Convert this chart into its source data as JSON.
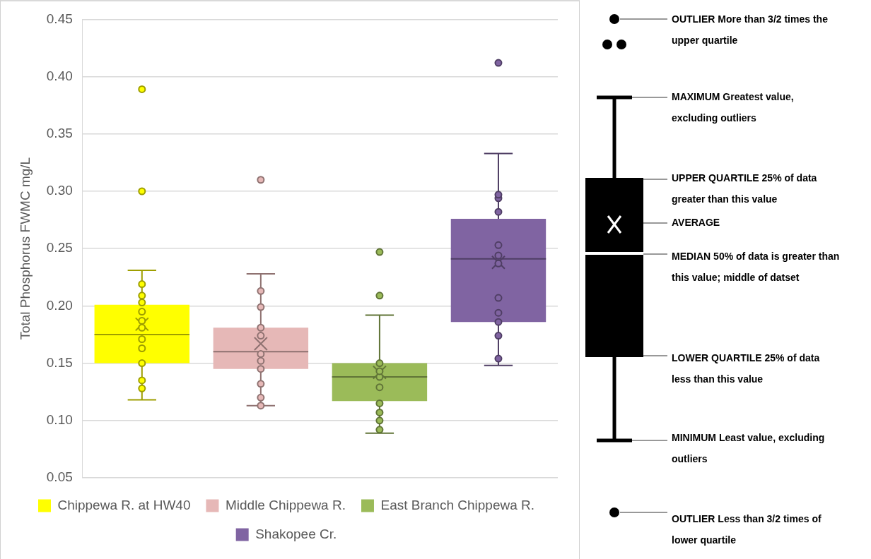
{
  "chart_data": {
    "type": "box",
    "ylabel": "Total Phosphorus FWMC mg/L",
    "categories": [
      null,
      null,
      null,
      null
    ],
    "ylim": [
      0.05,
      0.45
    ],
    "yticks": [
      {
        "value": 0.05,
        "label": "0.05"
      },
      {
        "value": 0.1,
        "label": "0.10"
      },
      {
        "value": 0.15,
        "label": "0.15"
      },
      {
        "value": 0.2,
        "label": "0.20"
      },
      {
        "value": 0.25,
        "label": "0.25"
      },
      {
        "value": 0.3,
        "label": "0.30"
      },
      {
        "value": 0.35,
        "label": "0.35"
      },
      {
        "value": 0.4,
        "label": "0.40"
      },
      {
        "value": 0.45,
        "label": "0.45"
      }
    ],
    "grid": "y",
    "legend": "bottom",
    "tick_labels": "y",
    "marker": "circle",
    "series": [
      {
        "name": "Chippewa R. at HW40",
        "color": "#ffff00",
        "boxes": [
          {
            "low": 0.118,
            "q1": 0.15,
            "median": 0.175,
            "q3": 0.201,
            "high": 0.231,
            "mean": 0.184,
            "outliers": [
              0.389,
              0.3
            ]
          },
          null,
          null,
          null
        ]
      },
      {
        "name": "Middle Chippewa R.",
        "color": "#e6b8b7",
        "boxes": [
          null,
          {
            "low": 0.113,
            "q1": 0.145,
            "median": 0.16,
            "q3": 0.181,
            "high": 0.228,
            "mean": 0.167,
            "outliers": [
              0.31
            ]
          },
          null,
          null
        ]
      },
      {
        "name": "East Branch Chippewa R.",
        "color": "#9bbb59",
        "boxes": [
          null,
          null,
          {
            "low": 0.089,
            "q1": 0.117,
            "median": 0.138,
            "q3": 0.15,
            "high": 0.192,
            "mean": 0.142,
            "outliers": [
              0.247,
              0.209
            ]
          },
          null
        ]
      },
      {
        "name": "Shakopee Cr.",
        "color": "#8064a2",
        "boxes": [
          null,
          null,
          null,
          {
            "low": 0.148,
            "q1": 0.186,
            "median": 0.241,
            "q3": 0.276,
            "high": 0.333,
            "mean": 0.238,
            "outliers": [
              0.412
            ]
          }
        ]
      },
      {
        "type": "scatter",
        "colors": [
          "#ffff00",
          "#e6b8b7",
          "#9bbb59",
          "#8064a2"
        ],
        "values": [
          0.219,
          0.213,
          0.15,
          0.297
        ]
      },
      {
        "type": "scatter",
        "colors": [
          "#ffff00",
          "#e6b8b7",
          "#9bbb59",
          "#8064a2"
        ],
        "values": [
          0.209,
          0.199,
          0.143,
          0.294
        ]
      },
      {
        "type": "scatter",
        "colors": [
          "#ffff00",
          "#e6b8b7",
          "#9bbb59",
          "#8064a2"
        ],
        "values": [
          0.203,
          0.181,
          0.138,
          0.282
        ]
      },
      {
        "type": "scatter",
        "colors": [
          "#ffff00",
          "#e6b8b7",
          "#9bbb59",
          "#8064a2"
        ],
        "values": [
          0.195,
          0.174,
          0.129,
          0.253
        ]
      },
      {
        "type": "scatter",
        "colors": [
          "#ffff00",
          "#e6b8b7",
          "#9bbb59",
          "#8064a2"
        ],
        "values": [
          0.187,
          0.158,
          0.115,
          0.244
        ]
      },
      {
        "type": "scatter",
        "colors": [
          "#ffff00",
          "#e6b8b7",
          "#9bbb59",
          "#8064a2"
        ],
        "values": [
          0.181,
          0.152,
          0.107,
          0.237
        ]
      },
      {
        "type": "scatter",
        "colors": [
          "#ffff00",
          "#e6b8b7",
          "#9bbb59",
          "#8064a2"
        ],
        "values": [
          0.171,
          0.145,
          0.1,
          0.207
        ]
      },
      {
        "type": "scatter",
        "colors": [
          "#ffff00",
          "#e6b8b7",
          "#9bbb59",
          "#8064a2"
        ],
        "values": [
          0.163,
          0.132,
          0.092,
          0.194
        ]
      },
      {
        "type": "scatter",
        "colors": [
          "#ffff00",
          "#e6b8b7",
          null,
          "#8064a2"
        ],
        "values": [
          0.15,
          0.12,
          null,
          0.186
        ]
      },
      {
        "type": "scatter",
        "colors": [
          "#ffff00",
          "#e6b8b7",
          null,
          "#8064a2"
        ],
        "values": [
          0.135,
          0.113,
          null,
          0.174
        ]
      },
      {
        "type": "scatter",
        "colors": [
          "#ffff00",
          null,
          null,
          "#8064a2"
        ],
        "values": [
          0.128,
          null,
          null,
          0.154
        ]
      }
    ],
    "annotations": [
      "OUTLIER More than 3/2 times the upper quartile",
      "MAXIMUM Greatest value, excluding outliers",
      "UPPER QUARTILE 25% of data greater than this value",
      "AVERAGE",
      "MEDIAN 50% of data is greater than this value; middle of datset",
      "LOWER QUARTILE 25% of data less than this value",
      "MINIMUM Least value, excluding outliers",
      "OUTLIER Less than 3/2 times of lower quartile"
    ]
  }
}
